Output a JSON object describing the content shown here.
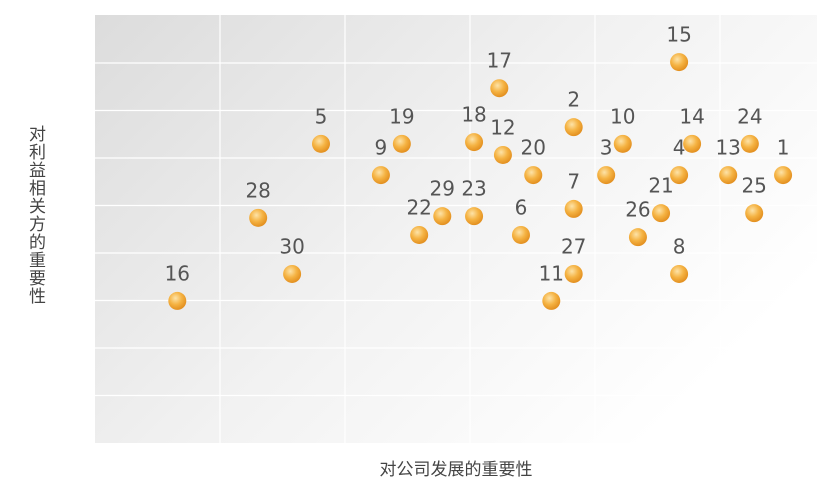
{
  "chart_data": {
    "type": "scatter",
    "x_label": "对公司发展的重要性",
    "y_label": "对利益相关方的重要性",
    "labels": [
      "1",
      "2",
      "3",
      "4",
      "5",
      "6",
      "7",
      "8",
      "9",
      "10",
      "11",
      "12",
      "13",
      "14",
      "15",
      "16",
      "17",
      "18",
      "19",
      "20",
      "21",
      "22",
      "23",
      "24",
      "25",
      "26",
      "27",
      "28",
      "29",
      "30"
    ],
    "x": [
      95.3,
      66.3,
      70.8,
      80.9,
      31.3,
      59.0,
      66.3,
      80.9,
      39.6,
      73.1,
      63.2,
      56.5,
      87.7,
      82.7,
      80.9,
      11.4,
      56.0,
      52.5,
      42.5,
      60.7,
      78.4,
      44.9,
      52.5,
      90.7,
      91.3,
      75.2,
      66.3,
      22.6,
      48.1,
      27.3
    ],
    "values": [
      62.6,
      73.8,
      62.6,
      62.6,
      69.9,
      48.6,
      54.7,
      39.5,
      62.6,
      69.9,
      33.2,
      67.3,
      62.6,
      69.9,
      89.0,
      33.2,
      82.9,
      70.3,
      69.9,
      62.6,
      53.7,
      48.6,
      53.0,
      69.9,
      53.7,
      48.1,
      39.5,
      52.6,
      53.0,
      39.5
    ],
    "color": "#f0a830",
    "xlim": [
      0,
      100
    ],
    "ylim": [
      0,
      100
    ],
    "grid": true
  }
}
